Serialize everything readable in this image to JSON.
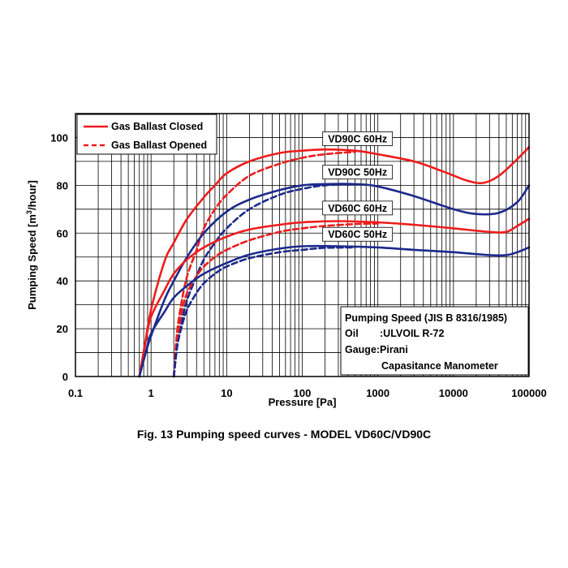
{
  "chart_data": {
    "type": "line",
    "title": "",
    "xlabel": "Pressure [Pa]",
    "ylabel_main": "Pumping Speed [m",
    "ylabel_sup": "3",
    "ylabel_tail": "/hour]",
    "x_scale": "log",
    "xlim": [
      0.1,
      100000
    ],
    "ylim": [
      0,
      110
    ],
    "x_ticks": [
      {
        "value": 0.1,
        "label": "0.1"
      },
      {
        "value": 1,
        "label": "1"
      },
      {
        "value": 10,
        "label": "10"
      },
      {
        "value": 100,
        "label": "100"
      },
      {
        "value": 1000,
        "label": "1000"
      },
      {
        "value": 10000,
        "label": "10000"
      },
      {
        "value": 100000,
        "label": "100000"
      }
    ],
    "y_ticks": [
      {
        "value": 0,
        "label": "0"
      },
      {
        "value": 20,
        "label": "20"
      },
      {
        "value": 40,
        "label": "40"
      },
      {
        "value": 60,
        "label": "60"
      },
      {
        "value": 80,
        "label": "80"
      },
      {
        "value": 100,
        "label": "100"
      }
    ],
    "grid": true,
    "legend": {
      "placement": "top-left",
      "entries": [
        {
          "label": "Gas Ballast Closed",
          "color": "#ee1c1c",
          "dash": "solid"
        },
        {
          "label": "Gas Ballast Opened",
          "color": "#ee1c1c",
          "dash": "dashed"
        }
      ]
    },
    "series": [
      {
        "model": "VD90C 60Hz",
        "ballast": "closed",
        "color": "#ee1c1c",
        "dash": "solid",
        "points": [
          [
            0.7,
            0
          ],
          [
            0.8,
            10
          ],
          [
            1,
            28
          ],
          [
            1.5,
            48
          ],
          [
            2,
            56
          ],
          [
            3,
            66
          ],
          [
            5,
            75
          ],
          [
            7,
            80
          ],
          [
            10,
            85
          ],
          [
            20,
            90
          ],
          [
            50,
            93.5
          ],
          [
            100,
            94.5
          ],
          [
            200,
            95
          ],
          [
            500,
            94.5
          ],
          [
            1000,
            93
          ],
          [
            3000,
            90
          ],
          [
            7000,
            86
          ],
          [
            15000,
            82
          ],
          [
            25000,
            81
          ],
          [
            40000,
            84
          ],
          [
            70000,
            91
          ],
          [
            100000,
            96
          ]
        ]
      },
      {
        "model": "VD90C 60Hz",
        "ballast": "opened",
        "color": "#ee1c1c",
        "dash": "dashed",
        "points": [
          [
            2,
            0
          ],
          [
            2.2,
            18
          ],
          [
            2.5,
            30
          ],
          [
            3,
            42
          ],
          [
            4,
            53
          ],
          [
            5,
            62
          ],
          [
            7,
            70
          ],
          [
            10,
            76
          ],
          [
            20,
            84
          ],
          [
            50,
            89
          ],
          [
            100,
            91.5
          ],
          [
            200,
            93
          ],
          [
            500,
            94
          ]
        ]
      },
      {
        "model": "VD90C 50Hz",
        "ballast": "closed",
        "color": "#1c2a8c",
        "dash": "solid",
        "points": [
          [
            0.7,
            0
          ],
          [
            0.85,
            10
          ],
          [
            1,
            17
          ],
          [
            1.5,
            32
          ],
          [
            2,
            40
          ],
          [
            3,
            50
          ],
          [
            5,
            60
          ],
          [
            10,
            69
          ],
          [
            20,
            74
          ],
          [
            50,
            78
          ],
          [
            100,
            80
          ],
          [
            200,
            80.5
          ],
          [
            500,
            80.5
          ],
          [
            1000,
            79.5
          ],
          [
            3000,
            75.5
          ],
          [
            10000,
            70
          ],
          [
            20000,
            68
          ],
          [
            40000,
            68.5
          ],
          [
            70000,
            73
          ],
          [
            100000,
            80
          ]
        ]
      },
      {
        "model": "VD90C 50Hz",
        "ballast": "opened",
        "color": "#1c2a8c",
        "dash": "dashed",
        "points": [
          [
            2,
            0
          ],
          [
            2.2,
            12
          ],
          [
            2.5,
            22
          ],
          [
            3,
            32
          ],
          [
            4,
            42
          ],
          [
            5,
            49
          ],
          [
            7,
            56
          ],
          [
            10,
            62
          ],
          [
            20,
            70
          ],
          [
            50,
            76
          ],
          [
            100,
            78.5
          ],
          [
            200,
            80
          ],
          [
            500,
            80.5
          ]
        ]
      },
      {
        "model": "VD60C 60Hz",
        "ballast": "closed",
        "color": "#ee1c1c",
        "dash": "solid",
        "points": [
          [
            0.7,
            0
          ],
          [
            0.85,
            15
          ],
          [
            1,
            25
          ],
          [
            1.5,
            36
          ],
          [
            2,
            43
          ],
          [
            3,
            49
          ],
          [
            5,
            54
          ],
          [
            10,
            58.5
          ],
          [
            20,
            61.5
          ],
          [
            50,
            63.5
          ],
          [
            100,
            64.5
          ],
          [
            300,
            65
          ],
          [
            1000,
            64.5
          ],
          [
            3000,
            63.5
          ],
          [
            10000,
            62
          ],
          [
            30000,
            60.5
          ],
          [
            50000,
            60.5
          ],
          [
            70000,
            63
          ],
          [
            100000,
            66
          ]
        ]
      },
      {
        "model": "VD60C 60Hz",
        "ballast": "opened",
        "color": "#ee1c1c",
        "dash": "dashed",
        "points": [
          [
            2,
            0
          ],
          [
            2.2,
            14
          ],
          [
            2.5,
            26
          ],
          [
            3,
            35
          ],
          [
            4,
            42
          ],
          [
            5,
            46
          ],
          [
            7,
            50
          ],
          [
            10,
            53
          ],
          [
            20,
            57
          ],
          [
            50,
            60.5
          ],
          [
            100,
            62
          ],
          [
            200,
            63
          ],
          [
            500,
            63.8
          ],
          [
            1000,
            64
          ]
        ]
      },
      {
        "model": "VD60C 50Hz",
        "ballast": "closed",
        "color": "#1c2a8c",
        "dash": "solid",
        "points": [
          [
            0.7,
            0
          ],
          [
            0.85,
            10
          ],
          [
            1,
            18
          ],
          [
            1.5,
            27
          ],
          [
            2,
            33
          ],
          [
            3,
            38
          ],
          [
            5,
            43
          ],
          [
            10,
            47.5
          ],
          [
            20,
            51
          ],
          [
            50,
            53.5
          ],
          [
            100,
            54.5
          ],
          [
            300,
            54.5
          ],
          [
            1000,
            54
          ],
          [
            3000,
            53
          ],
          [
            10000,
            52
          ],
          [
            30000,
            50.8
          ],
          [
            50000,
            50.8
          ],
          [
            70000,
            52
          ],
          [
            100000,
            54
          ]
        ]
      },
      {
        "model": "VD60C 50Hz",
        "ballast": "opened",
        "color": "#1c2a8c",
        "dash": "dashed",
        "points": [
          [
            2,
            0
          ],
          [
            2.2,
            12
          ],
          [
            2.5,
            20
          ],
          [
            3,
            28
          ],
          [
            4,
            35
          ],
          [
            5,
            39
          ],
          [
            7,
            43
          ],
          [
            10,
            46
          ],
          [
            20,
            49.5
          ],
          [
            50,
            52
          ],
          [
            100,
            53
          ],
          [
            200,
            53.8
          ],
          [
            500,
            54
          ]
        ]
      }
    ],
    "model_labels": [
      {
        "text": "VD90C 60Hz",
        "x": 1000,
        "y": 99.5
      },
      {
        "text": "VD90C 50Hz",
        "x": 1000,
        "y": 85.5
      },
      {
        "text": "VD60C 60Hz",
        "x": 1000,
        "y": 70.5
      },
      {
        "text": "VD60C 50Hz",
        "x": 1000,
        "y": 59.5
      }
    ],
    "info_box": {
      "line1": "Pumping Speed (JIS B 8316/1985)",
      "line2_label": "Oil",
      "line2_value": ":ULVOIL R-72",
      "line3": "Gauge:Pirani",
      "line4": "Capasitance Manometer"
    }
  },
  "caption": "Fig. 13 Pumping speed curves - MODEL VD60C/VD90C"
}
